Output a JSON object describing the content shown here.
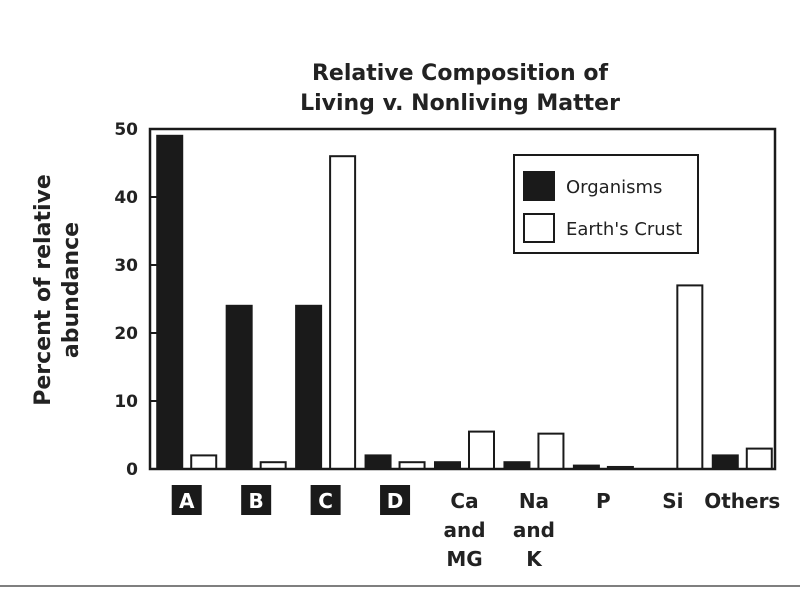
{
  "chart_data": {
    "type": "bar",
    "title_lines": [
      "Relative Composition of",
      "Living v. Nonliving Matter"
    ],
    "ylabel_lines": [
      "Percent of relative",
      "abundance"
    ],
    "xlabel": "",
    "ylim": [
      0,
      50
    ],
    "yticks": [
      0,
      10,
      20,
      30,
      40,
      50
    ],
    "grid": false,
    "legend_position": "top-right",
    "categories": [
      {
        "lines": [
          "A"
        ],
        "boxed": true
      },
      {
        "lines": [
          "B"
        ],
        "boxed": true
      },
      {
        "lines": [
          "C"
        ],
        "boxed": true
      },
      {
        "lines": [
          "D"
        ],
        "boxed": true
      },
      {
        "lines": [
          "Ca",
          "and",
          "MG"
        ],
        "boxed": false
      },
      {
        "lines": [
          "Na",
          "and",
          "K"
        ],
        "boxed": false
      },
      {
        "lines": [
          "P"
        ],
        "boxed": false
      },
      {
        "lines": [
          "Si"
        ],
        "boxed": false
      },
      {
        "lines": [
          "Others"
        ],
        "boxed": false
      }
    ],
    "series": [
      {
        "name": "Organisms",
        "color": "#1a1a1a",
        "values": [
          49,
          24,
          24,
          2,
          1,
          1,
          0.5,
          0,
          2
        ]
      },
      {
        "name": "Earth's Crust",
        "color": "#ffffff",
        "values": [
          2,
          1,
          46,
          1,
          5.5,
          5.2,
          0.3,
          27,
          3
        ]
      }
    ]
  }
}
